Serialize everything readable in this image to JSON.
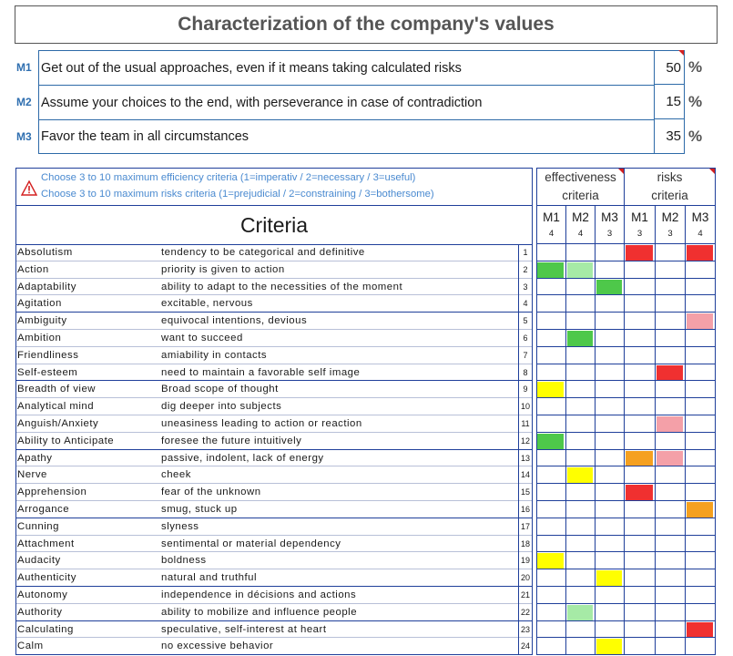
{
  "title": "Characterization of the company's values",
  "values": [
    {
      "code": "M1",
      "text": "Get out of the usual approaches, even if it means taking calculated risks",
      "percent": "50",
      "unit": "%"
    },
    {
      "code": "M2",
      "text": "Assume your choices to the end, with perseverance in case of contradiction",
      "percent": "15",
      "unit": "%"
    },
    {
      "code": "M3",
      "text": "Favor the team in all circumstances",
      "percent": "35",
      "unit": "%"
    }
  ],
  "hints": {
    "line1": "Choose 3 to 10 maximum efficiency criteria (1=imperativ / 2=necessary / 3=useful)",
    "line2": "Choose 3 to 10 maximum risks criteria (1=prejudicial / 2=constraining / 3=bothersome)",
    "icon": "warning-icon"
  },
  "criteria_title": "Criteria",
  "groups": [
    {
      "label": "effectiveness criteria",
      "line1": "effectiveness",
      "line2": "criteria"
    },
    {
      "label": "risks criteria",
      "line1": "risks",
      "line2": "criteria"
    }
  ],
  "columns": [
    {
      "label": "M1",
      "weight": "4"
    },
    {
      "label": "M2",
      "weight": "4"
    },
    {
      "label": "M3",
      "weight": "3"
    },
    {
      "label": "M1",
      "weight": "3"
    },
    {
      "label": "M2",
      "weight": "3"
    },
    {
      "label": "M3",
      "weight": "4"
    }
  ],
  "colors": {
    "red": "#f03030",
    "pink": "#f4a0a8",
    "green": "#4ec84a",
    "light_green": "#a6eaa6",
    "yellow": "#ffff00",
    "orange": "#f5a020",
    "grid": "#1f3f9a",
    "accent": "#2f6fb0"
  },
  "criteria": [
    {
      "num": "1",
      "name": "Absolutism",
      "desc": "tendency to be categorical and definitive",
      "marks": [
        "",
        "",
        "",
        "red",
        "",
        "red"
      ]
    },
    {
      "num": "2",
      "name": "Action",
      "desc": "priority is given to action",
      "marks": [
        "green",
        "light_green",
        "",
        "",
        "",
        ""
      ]
    },
    {
      "num": "3",
      "name": "Adaptability",
      "desc": "ability to adapt to the necessities of the moment",
      "marks": [
        "",
        "",
        "green",
        "",
        "",
        ""
      ]
    },
    {
      "num": "4",
      "name": "Agitation",
      "desc": "excitable, nervous",
      "marks": [
        "",
        "",
        "",
        "",
        "",
        ""
      ]
    },
    {
      "num": "5",
      "name": "Ambiguity",
      "desc": "equivocal intentions, devious",
      "marks": [
        "",
        "",
        "",
        "",
        "",
        "pink"
      ]
    },
    {
      "num": "6",
      "name": "Ambition",
      "desc": "want to succeed",
      "marks": [
        "",
        "green",
        "",
        "",
        "",
        ""
      ]
    },
    {
      "num": "7",
      "name": "Friendliness",
      "desc": "amiability in contacts",
      "marks": [
        "",
        "",
        "",
        "",
        "",
        ""
      ]
    },
    {
      "num": "8",
      "name": "Self-esteem",
      "desc": "need to maintain a favorable self image",
      "marks": [
        "",
        "",
        "",
        "",
        "red",
        ""
      ]
    },
    {
      "num": "9",
      "name": "Breadth of view",
      "desc": "Broad scope of thought",
      "marks": [
        "yellow",
        "",
        "",
        "",
        "",
        ""
      ]
    },
    {
      "num": "10",
      "name": "Analytical mind",
      "desc": "dig deeper into subjects",
      "marks": [
        "",
        "",
        "",
        "",
        "",
        ""
      ]
    },
    {
      "num": "11",
      "name": "Anguish/Anxiety",
      "desc": "uneasiness leading to action or reaction",
      "marks": [
        "",
        "",
        "",
        "",
        "pink",
        ""
      ]
    },
    {
      "num": "12",
      "name": "Ability to Anticipate",
      "desc": "foresee the future intuitively",
      "marks": [
        "green",
        "",
        "",
        "",
        "",
        ""
      ]
    },
    {
      "num": "13",
      "name": "Apathy",
      "desc": "passive, indolent, lack of energy",
      "marks": [
        "",
        "",
        "",
        "orange",
        "pink",
        ""
      ]
    },
    {
      "num": "14",
      "name": "Nerve",
      "desc": "cheek",
      "marks": [
        "",
        "yellow",
        "",
        "",
        "",
        ""
      ]
    },
    {
      "num": "15",
      "name": "Apprehension",
      "desc": "fear of the unknown",
      "marks": [
        "",
        "",
        "",
        "red",
        "",
        ""
      ]
    },
    {
      "num": "16",
      "name": "Arrogance",
      "desc": "smug, stuck up",
      "marks": [
        "",
        "",
        "",
        "",
        "",
        "orange"
      ]
    },
    {
      "num": "17",
      "name": "Cunning",
      "desc": "slyness",
      "marks": [
        "",
        "",
        "",
        "",
        "",
        ""
      ]
    },
    {
      "num": "18",
      "name": "Attachment",
      "desc": "sentimental or material dependency",
      "marks": [
        "",
        "",
        "",
        "",
        "",
        ""
      ]
    },
    {
      "num": "19",
      "name": "Audacity",
      "desc": "boldness",
      "marks": [
        "yellow",
        "",
        "",
        "",
        "",
        ""
      ]
    },
    {
      "num": "20",
      "name": "Authenticity",
      "desc": "natural and truthful",
      "marks": [
        "",
        "",
        "yellow",
        "",
        "",
        ""
      ]
    },
    {
      "num": "21",
      "name": "Autonomy",
      "desc": "independence in décisions and actions",
      "marks": [
        "",
        "",
        "",
        "",
        "",
        ""
      ]
    },
    {
      "num": "22",
      "name": "Authority",
      "desc": "ability to mobilize and influence people",
      "marks": [
        "",
        "light_green",
        "",
        "",
        "",
        ""
      ]
    },
    {
      "num": "23",
      "name": "Calculating",
      "desc": "speculative, self-interest at heart",
      "marks": [
        "",
        "",
        "",
        "",
        "",
        "red"
      ]
    },
    {
      "num": "24",
      "name": "Calm",
      "desc": "no excessive behavior",
      "marks": [
        "",
        "",
        "yellow",
        "",
        "",
        ""
      ]
    }
  ]
}
